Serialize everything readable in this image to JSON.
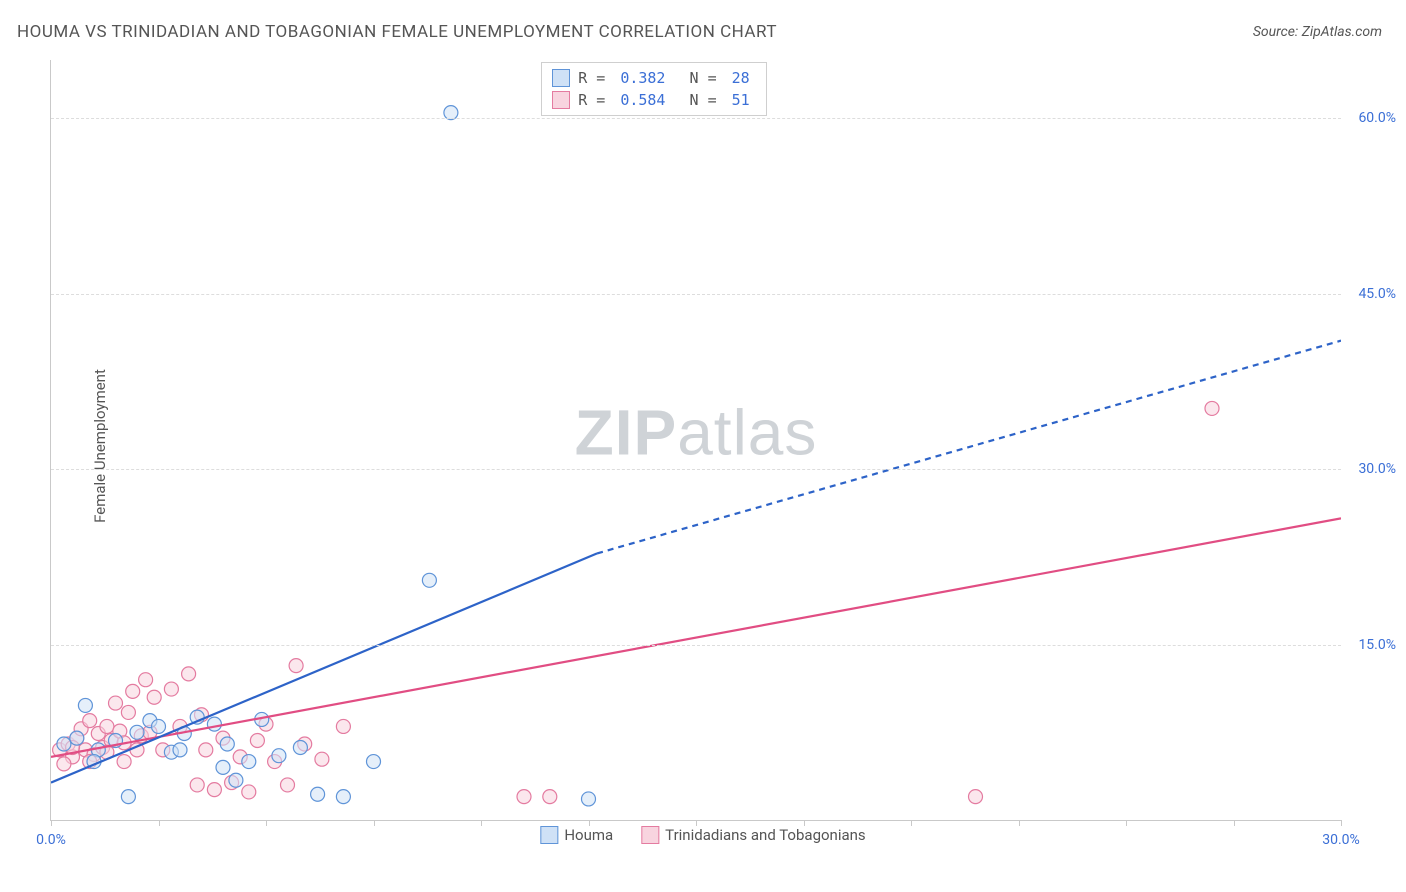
{
  "title": "HOUMA VS TRINIDADIAN AND TOBAGONIAN FEMALE UNEMPLOYMENT CORRELATION CHART",
  "source_label": "Source: ZipAtlas.com",
  "ylabel": "Female Unemployment",
  "watermark": {
    "bold": "ZIP",
    "rest": "atlas"
  },
  "colors": {
    "series1_fill": "#cfe1f6",
    "series1_stroke": "#5f94d8",
    "series2_fill": "#f8d4df",
    "series2_stroke": "#e47ba0",
    "line1": "#2d63c8",
    "line2": "#e14d83",
    "grid": "#dddddd",
    "axis": "#c9c9c9",
    "tick_text": "#3b6fd6",
    "title_text": "#555555",
    "background": "#ffffff"
  },
  "chart": {
    "type": "scatter-with-regression",
    "xlim": [
      0,
      30
    ],
    "ylim": [
      0,
      65
    ],
    "xtick_step": 2.5,
    "xtick_labels": {
      "0": "0.0%",
      "30": "30.0%"
    },
    "ytick_labels": {
      "15": "15.0%",
      "30": "30.0%",
      "45": "45.0%",
      "60": "60.0%"
    },
    "marker_radius": 7,
    "marker_fill_opacity": 0.55,
    "line_width": 2.2
  },
  "legend_top": {
    "rows": [
      {
        "swatch": "series1",
        "r_label": "R =",
        "r_value": "0.382",
        "n_label": "N =",
        "n_value": "28"
      },
      {
        "swatch": "series2",
        "r_label": "R =",
        "r_value": "0.584",
        "n_label": "N =",
        "n_value": "51"
      }
    ]
  },
  "legend_bottom": {
    "items": [
      {
        "swatch": "series1",
        "label": "Houma"
      },
      {
        "swatch": "series2",
        "label": "Trinidadians and Tobagonians"
      }
    ]
  },
  "series": {
    "houma": {
      "points": [
        [
          0.3,
          6.5
        ],
        [
          0.6,
          7.0
        ],
        [
          0.8,
          9.8
        ],
        [
          1.1,
          6.0
        ],
        [
          1.5,
          6.8
        ],
        [
          1.8,
          2.0
        ],
        [
          2.0,
          7.5
        ],
        [
          2.3,
          8.5
        ],
        [
          2.5,
          8.0
        ],
        [
          2.8,
          5.8
        ],
        [
          3.1,
          7.4
        ],
        [
          3.4,
          8.8
        ],
        [
          3.8,
          8.2
        ],
        [
          4.1,
          6.5
        ],
        [
          4.3,
          3.4
        ],
        [
          4.6,
          5.0
        ],
        [
          4.9,
          8.6
        ],
        [
          5.3,
          5.5
        ],
        [
          5.8,
          6.2
        ],
        [
          6.2,
          2.2
        ],
        [
          6.8,
          2.0
        ],
        [
          7.5,
          5.0
        ],
        [
          8.8,
          20.5
        ],
        [
          9.3,
          60.5
        ],
        [
          12.5,
          1.8
        ],
        [
          1.0,
          5.0
        ],
        [
          3.0,
          6.0
        ],
        [
          4.0,
          4.5
        ]
      ],
      "regression_solid": {
        "x1": 0.0,
        "y1": 3.2,
        "x2": 12.7,
        "y2": 22.8
      },
      "regression_dashed": {
        "x1": 12.7,
        "y1": 22.8,
        "x2": 30.0,
        "y2": 41.0
      }
    },
    "trinidad": {
      "points": [
        [
          0.2,
          6.0
        ],
        [
          0.4,
          6.5
        ],
        [
          0.5,
          5.4
        ],
        [
          0.6,
          7.0
        ],
        [
          0.7,
          7.8
        ],
        [
          0.8,
          6.0
        ],
        [
          0.9,
          8.5
        ],
        [
          1.0,
          5.6
        ],
        [
          1.1,
          7.4
        ],
        [
          1.2,
          6.2
        ],
        [
          1.3,
          8.0
        ],
        [
          1.4,
          6.8
        ],
        [
          1.5,
          10.0
        ],
        [
          1.6,
          7.6
        ],
        [
          1.7,
          5.0
        ],
        [
          1.8,
          9.2
        ],
        [
          1.9,
          11.0
        ],
        [
          2.0,
          6.0
        ],
        [
          2.1,
          7.2
        ],
        [
          2.2,
          12.0
        ],
        [
          2.4,
          10.5
        ],
        [
          2.6,
          6.0
        ],
        [
          2.8,
          11.2
        ],
        [
          3.0,
          8.0
        ],
        [
          3.2,
          12.5
        ],
        [
          3.4,
          3.0
        ],
        [
          3.6,
          6.0
        ],
        [
          3.8,
          2.6
        ],
        [
          4.0,
          7.0
        ],
        [
          4.2,
          3.2
        ],
        [
          4.4,
          5.4
        ],
        [
          4.6,
          2.4
        ],
        [
          4.8,
          6.8
        ],
        [
          5.0,
          8.2
        ],
        [
          5.2,
          5.0
        ],
        [
          5.5,
          3.0
        ],
        [
          5.7,
          13.2
        ],
        [
          5.9,
          6.5
        ],
        [
          6.3,
          5.2
        ],
        [
          6.8,
          8.0
        ],
        [
          11.0,
          2.0
        ],
        [
          11.6,
          2.0
        ],
        [
          21.5,
          2.0
        ],
        [
          27.0,
          35.2
        ],
        [
          0.3,
          4.8
        ],
        [
          0.5,
          6.2
        ],
        [
          0.9,
          5.0
        ],
        [
          1.3,
          5.8
        ],
        [
          1.7,
          6.6
        ],
        [
          2.3,
          7.5
        ],
        [
          3.5,
          9.0
        ]
      ],
      "regression_solid": {
        "x1": 0.0,
        "y1": 5.4,
        "x2": 30.0,
        "y2": 25.8
      }
    }
  }
}
